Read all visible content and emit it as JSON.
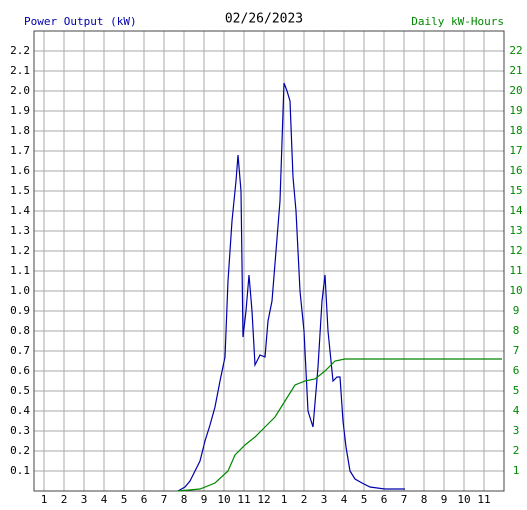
{
  "chart_data": {
    "type": "line",
    "title": "02/26/2023",
    "y_label": "Power Output (kW)",
    "y2_label": "Daily kW-Hours",
    "xlim": [
      0.5,
      24
    ],
    "xticks": [
      1,
      2,
      3,
      4,
      5,
      6,
      7,
      8,
      9,
      10,
      11,
      12,
      {
        "value": 13,
        "label": "1"
      },
      {
        "value": 14,
        "label": "2"
      },
      {
        "value": 15,
        "label": "3"
      },
      {
        "value": 16,
        "label": "4"
      },
      {
        "value": 17,
        "label": "5"
      },
      {
        "value": 18,
        "label": "6"
      },
      {
        "value": 19,
        "label": "7"
      },
      {
        "value": 20,
        "label": "8"
      },
      {
        "value": 21,
        "label": "9"
      },
      {
        "value": 22,
        "label": "10"
      },
      {
        "value": 23,
        "label": "11"
      }
    ],
    "ylim": [
      0,
      2.3
    ],
    "yticks": [
      0.1,
      0.2,
      0.3,
      0.4,
      0.5,
      0.6,
      0.7,
      0.8,
      0.9,
      {
        "value": 1,
        "label": "1.0"
      },
      1.1,
      1.2,
      1.3,
      1.4,
      1.5,
      1.6,
      1.7,
      1.8,
      1.9,
      {
        "value": 2,
        "label": "2.0"
      },
      2.1,
      2.2
    ],
    "y2lim": [
      0,
      23
    ],
    "y2ticks": [
      1,
      2,
      3,
      4,
      5,
      6,
      7,
      8,
      9,
      10,
      11,
      12,
      13,
      14,
      15,
      16,
      17,
      18,
      19,
      20,
      21,
      22
    ],
    "grid": true,
    "series": [
      {
        "name": "Power Output (kW)",
        "color": "#0000aa",
        "x": [
          7.7,
          8.05,
          8.3,
          8.55,
          8.8,
          9.05,
          9.3,
          9.55,
          9.8,
          10.05,
          10.2,
          10.4,
          10.6,
          10.7,
          10.85,
          10.95,
          11.1,
          11.25,
          11.4,
          11.55,
          11.8,
          12.05,
          12.2,
          12.4,
          12.6,
          12.8,
          13.0,
          13.15,
          13.3,
          13.45,
          13.6,
          13.8,
          14.0,
          14.2,
          14.45,
          14.7,
          14.9,
          15.05,
          15.2,
          15.45,
          15.65,
          15.8,
          15.95,
          16.1,
          16.3,
          16.55,
          16.9,
          17.3,
          18.05,
          19.05
        ],
        "values": [
          0.0,
          0.02,
          0.05,
          0.1,
          0.15,
          0.25,
          0.33,
          0.42,
          0.55,
          0.67,
          1.05,
          1.35,
          1.55,
          1.68,
          1.5,
          0.77,
          0.9,
          1.08,
          0.9,
          0.63,
          0.68,
          0.67,
          0.85,
          0.95,
          1.2,
          1.45,
          2.04,
          2.0,
          1.95,
          1.57,
          1.4,
          1.0,
          0.8,
          0.4,
          0.32,
          0.62,
          0.95,
          1.08,
          0.8,
          0.55,
          0.57,
          0.57,
          0.35,
          0.22,
          0.1,
          0.06,
          0.04,
          0.02,
          0.01,
          0.01
        ]
      },
      {
        "name": "Daily kW-Hours",
        "color": "#008800",
        "axis": "y2",
        "x": [
          7.7,
          8.8,
          9.55,
          10.2,
          10.55,
          11.05,
          11.55,
          12.05,
          12.55,
          13.05,
          13.55,
          14.05,
          14.55,
          15.05,
          15.55,
          16.05,
          16.8,
          23.9
        ],
        "values": [
          0,
          0.1,
          0.4,
          1.0,
          1.8,
          2.3,
          2.7,
          3.2,
          3.7,
          4.5,
          5.3,
          5.5,
          5.6,
          6.0,
          6.5,
          6.6,
          6.6,
          6.6
        ]
      }
    ]
  }
}
